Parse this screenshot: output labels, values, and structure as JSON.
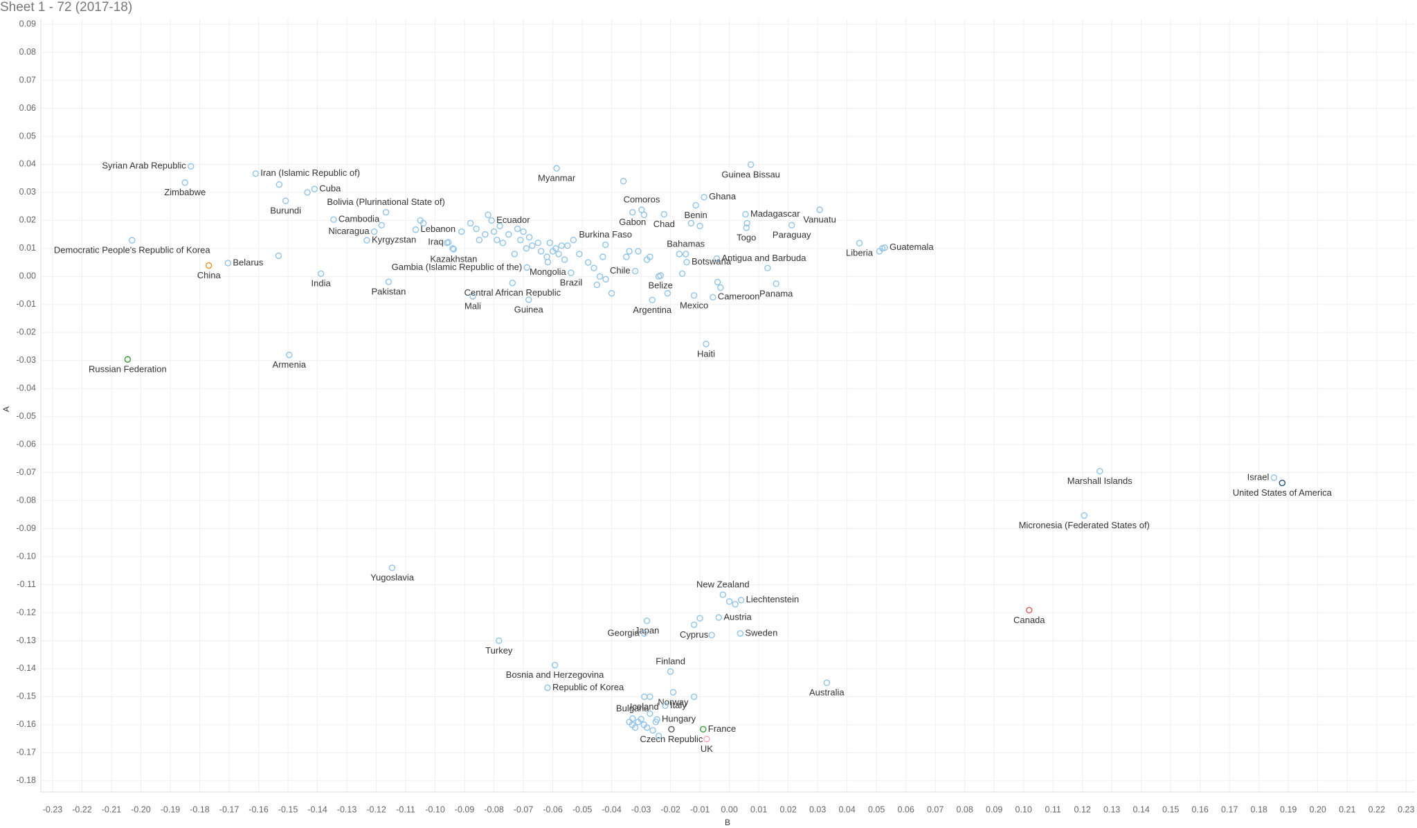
{
  "chart_data": {
    "type": "scatter",
    "title": "Sheet 1 - 72 (2017-18)",
    "x_label": "B",
    "y_label": "A",
    "color": "#8fc3e8",
    "grid": true,
    "xlim": [
      -0.234,
      0.233
    ],
    "ylim": [
      -0.184,
      0.092
    ],
    "xticks": [
      -0.23,
      -0.22,
      -0.21,
      {
        "value": -0.2,
        "label": "-0.20"
      },
      -0.19,
      -0.18,
      -0.17,
      -0.16,
      -0.15,
      -0.14,
      -0.13,
      -0.12,
      -0.11,
      {
        "value": -0.1,
        "label": "-0.10"
      },
      -0.09,
      -0.08,
      -0.07,
      -0.06,
      -0.05,
      -0.04,
      -0.03,
      -0.02,
      -0.01,
      {
        "value": 0,
        "label": "0.00"
      },
      0.01,
      0.02,
      0.03,
      0.04,
      0.05,
      0.06,
      0.07,
      0.08,
      0.09,
      {
        "value": 0.1,
        "label": "0.10"
      },
      0.11,
      0.12,
      0.13,
      0.14,
      0.15,
      0.16,
      0.17,
      0.18,
      0.19,
      {
        "value": 0.2,
        "label": "0.20"
      },
      0.21,
      0.22,
      0.23
    ],
    "yticks": [
      0.09,
      0.08,
      0.07,
      0.06,
      0.05,
      0.04,
      0.03,
      0.02,
      0.01,
      {
        "value": 0,
        "label": "0.00"
      },
      -0.01,
      -0.02,
      -0.03,
      -0.04,
      -0.05,
      -0.06,
      -0.07,
      -0.08,
      -0.09,
      {
        "value": -0.1,
        "label": "-0.10"
      },
      -0.11,
      -0.12,
      -0.13,
      -0.14,
      -0.15,
      -0.16,
      -0.17,
      -0.18
    ],
    "points": [
      {
        "label": "Syrian Arab Republic",
        "x": -0.183,
        "y": 0.0393
      },
      {
        "label": "Zimbabwe",
        "x": -0.185,
        "y": 0.0335
      },
      {
        "label": "Iran (Islamic Republic of)",
        "x": -0.161,
        "y": 0.0367
      },
      {
        "label": "Cuba",
        "x": -0.141,
        "y": 0.0312
      },
      {
        "label": "Burundi",
        "x": -0.1508,
        "y": 0.027
      },
      {
        "label": "Bolivia (Plurinational State of)",
        "x": -0.1167,
        "y": 0.0229
      },
      {
        "label": "Cambodia",
        "x": -0.1345,
        "y": 0.0203
      },
      {
        "label": "Nicaragua",
        "x": -0.1207,
        "y": 0.016
      },
      {
        "label": "Kyrgyzstan",
        "x": -0.1232,
        "y": 0.0129
      },
      {
        "label": "Democratic People's Republic of Korea",
        "x": -0.203,
        "y": 0.0129
      },
      {
        "label": "China",
        "x": -0.1769,
        "y": 0.0039,
        "color": "#f28e2b"
      },
      {
        "label": "Belarus",
        "x": -0.1704,
        "y": 0.0048
      },
      {
        "label": "India",
        "x": -0.1388,
        "y": 0.001
      },
      {
        "label": "Pakistan",
        "x": -0.1158,
        "y": -0.0019
      },
      {
        "label": "Russian Federation",
        "x": -0.2045,
        "y": -0.0296,
        "color": "#3a9a3a"
      },
      {
        "label": "Armenia",
        "x": -0.1496,
        "y": -0.028
      },
      {
        "label": "Lebanon",
        "x": -0.1066,
        "y": 0.0167
      },
      {
        "label": "Iraq",
        "x": -0.0955,
        "y": 0.0122
      },
      {
        "label": "Kazakhstan",
        "x": -0.0937,
        "y": 0.0097
      },
      {
        "label": "Mali",
        "x": -0.0872,
        "y": -0.0071
      },
      {
        "label": "Gambia (Islamic Republic of the)",
        "x": -0.0688,
        "y": 0.0032
      },
      {
        "label": "Central African Republic",
        "x": -0.0737,
        "y": -0.0023
      },
      {
        "label": "Guinea",
        "x": -0.0682,
        "y": -0.0083
      },
      {
        "label": "Ecuador",
        "x": -0.0808,
        "y": 0.02
      },
      {
        "label": "Mongolia",
        "x": -0.0617,
        "y": 0.0051
      },
      {
        "label": "Brazil",
        "x": -0.0538,
        "y": 0.0013
      },
      {
        "label": "Myanmar",
        "x": -0.0587,
        "y": 0.0386
      },
      {
        "label": "Burkina Faso",
        "x": -0.0421,
        "y": 0.0113
      },
      {
        "label": "Chile",
        "x": -0.032,
        "y": 0.0019
      },
      {
        "label": "Gabon",
        "x": -0.0329,
        "y": 0.0229
      },
      {
        "label": "Comoros",
        "x": -0.0298,
        "y": 0.0238
      },
      {
        "label": "Chad",
        "x": -0.0222,
        "y": 0.0222
      },
      {
        "label": "Benin",
        "x": -0.0114,
        "y": 0.0254
      },
      {
        "label": "Ghana",
        "x": -0.0086,
        "y": 0.0283
      },
      {
        "label": "Madagascar",
        "x": 0.0055,
        "y": 0.0222
      },
      {
        "label": "Togo",
        "x": 0.0058,
        "y": 0.0174
      },
      {
        "label": "Guinea Bissau",
        "x": 0.0073,
        "y": 0.0399
      },
      {
        "label": "Vanuatu",
        "x": 0.0307,
        "y": 0.0238
      },
      {
        "label": "Paraguay",
        "x": 0.0212,
        "y": 0.0183
      },
      {
        "label": "Bahamas",
        "x": -0.0148,
        "y": 0.008
      },
      {
        "label": "Antigua and Barbuda",
        "x": -0.0043,
        "y": 0.0064
      },
      {
        "label": "Botswana",
        "x": -0.0145,
        "y": 0.0051
      },
      {
        "label": "Belize",
        "x": -0.0234,
        "y": 0.0003
      },
      {
        "label": "Argentina",
        "x": -0.0262,
        "y": -0.0084
      },
      {
        "label": "Mexico",
        "x": -0.012,
        "y": -0.0068
      },
      {
        "label": "Cameroon",
        "x": -0.0056,
        "y": -0.0074
      },
      {
        "label": "Panama",
        "x": 0.0159,
        "y": -0.0026
      },
      {
        "label": "Haiti",
        "x": -0.0079,
        "y": -0.0241
      },
      {
        "label": "Liberia",
        "x": 0.0442,
        "y": 0.0119
      },
      {
        "label": "Guatemala",
        "x": 0.0528,
        "y": 0.0103
      },
      {
        "label": "Marshall Islands",
        "x": 0.1259,
        "y": -0.0695
      },
      {
        "label": "Israel",
        "x": 0.1851,
        "y": -0.0718
      },
      {
        "label": "United States of America",
        "x": 0.1879,
        "y": -0.0737,
        "color": "#1f4e79"
      },
      {
        "label": "Micronesia (Federated States of)",
        "x": 0.1206,
        "y": -0.0853
      },
      {
        "label": "Canada",
        "x": 0.1019,
        "y": -0.1191,
        "color": "#e15759"
      },
      {
        "label": "Yugoslavia",
        "x": -0.1146,
        "y": -0.104
      },
      {
        "label": "Turkey",
        "x": -0.0783,
        "y": -0.13
      },
      {
        "label": "Bosnia and Herzegovina",
        "x": -0.0593,
        "y": -0.1387
      },
      {
        "label": "Republic of Korea",
        "x": -0.0618,
        "y": -0.1468
      },
      {
        "label": "Japan",
        "x": -0.028,
        "y": -0.1229
      },
      {
        "label": "Georgia",
        "x": -0.0289,
        "y": -0.1274
      },
      {
        "label": "New Zealand",
        "x": -0.0022,
        "y": -0.1136
      },
      {
        "label": "Liechtenstein",
        "x": 0.004,
        "y": -0.1155
      },
      {
        "label": "Austria",
        "x": -0.0036,
        "y": -0.1217
      },
      {
        "label": "Cyprus",
        "x": -0.012,
        "y": -0.1243
      },
      {
        "label": "Sweden",
        "x": 0.0037,
        "y": -0.1274
      },
      {
        "label": "Finland",
        "x": -0.02,
        "y": -0.141
      },
      {
        "label": "Iceland",
        "x": -0.0289,
        "y": -0.15
      },
      {
        "label": "Norway",
        "x": -0.0191,
        "y": -0.1484
      },
      {
        "label": "Australia",
        "x": 0.0331,
        "y": -0.145
      },
      {
        "label": "Bulgaria",
        "x": -0.0329,
        "y": -0.1578
      },
      {
        "label": "Italy",
        "x": -0.0218,
        "y": -0.1532
      },
      {
        "label": "Hungary",
        "x": -0.0246,
        "y": -0.1581
      },
      {
        "label": "Czech Republic",
        "x": -0.0197,
        "y": -0.1616,
        "color": "#555555"
      },
      {
        "label": "France",
        "x": -0.0089,
        "y": -0.1616,
        "color": "#3a9a3a"
      },
      {
        "label": "UK",
        "x": -0.0077,
        "y": -0.1651,
        "color": "#f4a6b8"
      },
      {
        "label": null,
        "x": -0.153,
        "y": 0.0328
      },
      {
        "label": null,
        "x": -0.1434,
        "y": 0.03
      },
      {
        "label": null,
        "x": -0.1182,
        "y": 0.0183
      },
      {
        "label": null,
        "x": -0.1532,
        "y": 0.0074
      },
      {
        "label": null,
        "x": -0.105,
        "y": 0.02
      },
      {
        "label": null,
        "x": -0.104,
        "y": 0.019
      },
      {
        "label": null,
        "x": -0.096,
        "y": 0.012
      },
      {
        "label": null,
        "x": -0.094,
        "y": 0.01
      },
      {
        "label": null,
        "x": -0.091,
        "y": 0.016
      },
      {
        "label": null,
        "x": -0.088,
        "y": 0.019
      },
      {
        "label": null,
        "x": -0.086,
        "y": 0.017
      },
      {
        "label": null,
        "x": -0.085,
        "y": 0.013
      },
      {
        "label": null,
        "x": -0.083,
        "y": 0.015
      },
      {
        "label": null,
        "x": -0.082,
        "y": 0.022
      },
      {
        "label": null,
        "x": -0.08,
        "y": 0.016
      },
      {
        "label": null,
        "x": -0.079,
        "y": 0.013
      },
      {
        "label": null,
        "x": -0.078,
        "y": 0.018
      },
      {
        "label": null,
        "x": -0.077,
        "y": 0.012
      },
      {
        "label": null,
        "x": -0.075,
        "y": 0.015
      },
      {
        "label": null,
        "x": -0.073,
        "y": 0.008
      },
      {
        "label": null,
        "x": -0.072,
        "y": 0.017
      },
      {
        "label": null,
        "x": -0.071,
        "y": 0.013
      },
      {
        "label": null,
        "x": -0.07,
        "y": 0.016
      },
      {
        "label": null,
        "x": -0.069,
        "y": 0.01
      },
      {
        "label": null,
        "x": -0.068,
        "y": 0.014
      },
      {
        "label": null,
        "x": -0.067,
        "y": 0.011
      },
      {
        "label": null,
        "x": -0.065,
        "y": 0.012
      },
      {
        "label": null,
        "x": -0.064,
        "y": 0.009
      },
      {
        "label": null,
        "x": -0.062,
        "y": 0.007
      },
      {
        "label": null,
        "x": -0.061,
        "y": 0.012
      },
      {
        "label": null,
        "x": -0.06,
        "y": 0.009
      },
      {
        "label": null,
        "x": -0.059,
        "y": 0.01
      },
      {
        "label": null,
        "x": -0.058,
        "y": 0.008
      },
      {
        "label": null,
        "x": -0.057,
        "y": 0.011
      },
      {
        "label": null,
        "x": -0.056,
        "y": 0.006
      },
      {
        "label": null,
        "x": -0.055,
        "y": 0.011
      },
      {
        "label": null,
        "x": -0.053,
        "y": 0.013
      },
      {
        "label": null,
        "x": -0.051,
        "y": 0.008
      },
      {
        "label": null,
        "x": -0.048,
        "y": 0.005
      },
      {
        "label": null,
        "x": -0.046,
        "y": 0.003
      },
      {
        "label": null,
        "x": -0.045,
        "y": -0.003
      },
      {
        "label": null,
        "x": -0.044,
        "y": 0.0
      },
      {
        "label": null,
        "x": -0.043,
        "y": 0.007
      },
      {
        "label": null,
        "x": -0.042,
        "y": -0.001
      },
      {
        "label": null,
        "x": -0.04,
        "y": -0.006
      },
      {
        "label": null,
        "x": -0.036,
        "y": 0.034
      },
      {
        "label": null,
        "x": -0.035,
        "y": 0.007
      },
      {
        "label": null,
        "x": -0.034,
        "y": 0.009
      },
      {
        "label": null,
        "x": -0.031,
        "y": 0.009
      },
      {
        "label": null,
        "x": -0.029,
        "y": 0.022
      },
      {
        "label": null,
        "x": -0.028,
        "y": 0.006
      },
      {
        "label": null,
        "x": -0.027,
        "y": 0.007
      },
      {
        "label": null,
        "x": -0.024,
        "y": 0.0
      },
      {
        "label": null,
        "x": -0.021,
        "y": -0.006
      },
      {
        "label": null,
        "x": -0.017,
        "y": 0.008
      },
      {
        "label": null,
        "x": -0.016,
        "y": 0.001
      },
      {
        "label": null,
        "x": -0.013,
        "y": 0.019
      },
      {
        "label": null,
        "x": -0.01,
        "y": 0.018
      },
      {
        "label": null,
        "x": -0.004,
        "y": -0.002
      },
      {
        "label": null,
        "x": -0.003,
        "y": -0.004
      },
      {
        "label": null,
        "x": 0.006,
        "y": 0.019
      },
      {
        "label": null,
        "x": 0.013,
        "y": 0.003
      },
      {
        "label": null,
        "x": 0.051,
        "y": 0.009
      },
      {
        "label": null,
        "x": 0.052,
        "y": 0.01
      },
      {
        "label": null,
        "x": -0.034,
        "y": -0.159
      },
      {
        "label": null,
        "x": -0.033,
        "y": -0.16
      },
      {
        "label": null,
        "x": -0.032,
        "y": -0.161
      },
      {
        "label": null,
        "x": -0.031,
        "y": -0.159
      },
      {
        "label": null,
        "x": -0.03,
        "y": -0.158
      },
      {
        "label": null,
        "x": -0.029,
        "y": -0.16
      },
      {
        "label": null,
        "x": -0.028,
        "y": -0.161
      },
      {
        "label": null,
        "x": -0.027,
        "y": -0.156
      },
      {
        "label": null,
        "x": -0.026,
        "y": -0.162
      },
      {
        "label": null,
        "x": -0.025,
        "y": -0.159
      },
      {
        "label": null,
        "x": -0.024,
        "y": -0.164
      },
      {
        "label": null,
        "x": -0.027,
        "y": -0.15
      },
      {
        "label": null,
        "x": -0.012,
        "y": -0.15
      },
      {
        "label": null,
        "x": -0.01,
        "y": -0.122
      },
      {
        "label": null,
        "x": -0.006,
        "y": -0.128
      },
      {
        "label": null,
        "x": 0.0,
        "y": -0.116
      },
      {
        "label": null,
        "x": 0.002,
        "y": -0.117
      }
    ]
  }
}
